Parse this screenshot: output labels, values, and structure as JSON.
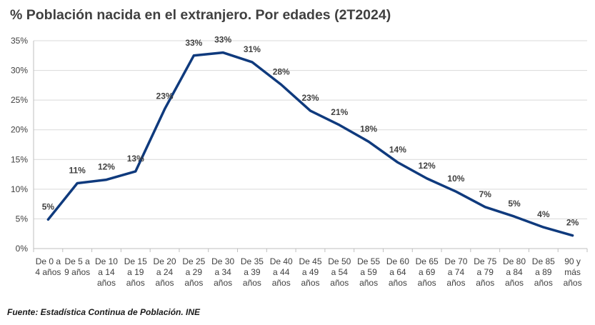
{
  "chart_data": {
    "type": "line",
    "title": "% Población nacida en el extranjero. Por edades (2T2024)",
    "xlabel": "",
    "ylabel": "",
    "categories": [
      [
        "De 0 a",
        "4 años"
      ],
      [
        "De 5 a",
        "9 años"
      ],
      [
        "De 10",
        "a 14",
        "años"
      ],
      [
        "De 15",
        "a 19",
        "años"
      ],
      [
        "De 20",
        "a 24",
        "años"
      ],
      [
        "De 25",
        "a 29",
        "años"
      ],
      [
        "De 30",
        "a 34",
        "años"
      ],
      [
        "De 35",
        "a 39",
        "años"
      ],
      [
        "De 40",
        "a 44",
        "años"
      ],
      [
        "De 45",
        "a 49",
        "años"
      ],
      [
        "De 50",
        "a 54",
        "años"
      ],
      [
        "De 55",
        "a 59",
        "años"
      ],
      [
        "De 60",
        "a 64",
        "años"
      ],
      [
        "De 65",
        "a 69",
        "años"
      ],
      [
        "De 70",
        "a 74",
        "años"
      ],
      [
        "De 75",
        "a 79",
        "años"
      ],
      [
        "De 80",
        "a 84",
        "años"
      ],
      [
        "De 85",
        "a 89",
        "años"
      ],
      [
        "90 y",
        "más",
        "años"
      ]
    ],
    "series": [
      {
        "values": [
          4.9,
          11.0,
          11.6,
          13.0,
          23.5,
          32.5,
          33.0,
          31.4,
          27.6,
          23.2,
          20.8,
          18.0,
          14.5,
          11.8,
          9.6,
          7.0,
          5.4,
          3.6,
          2.2
        ],
        "labels": [
          "5%",
          "11%",
          "12%",
          "13%",
          "23%",
          "33%",
          "33%",
          "31%",
          "28%",
          "23%",
          "21%",
          "18%",
          "14%",
          "12%",
          "10%",
          "7%",
          "5%",
          "4%",
          "2%"
        ],
        "color": "#0f3a7d"
      }
    ],
    "ylim": [
      0,
      35
    ],
    "yticks": [
      0,
      5,
      10,
      15,
      20,
      25,
      30,
      35
    ],
    "ytick_labels": [
      "0%",
      "5%",
      "10%",
      "15%",
      "20%",
      "25%",
      "30%",
      "35%"
    ],
    "grid": true,
    "legend": "none"
  },
  "source": "Fuente: Estadística Continua de Población. INE"
}
